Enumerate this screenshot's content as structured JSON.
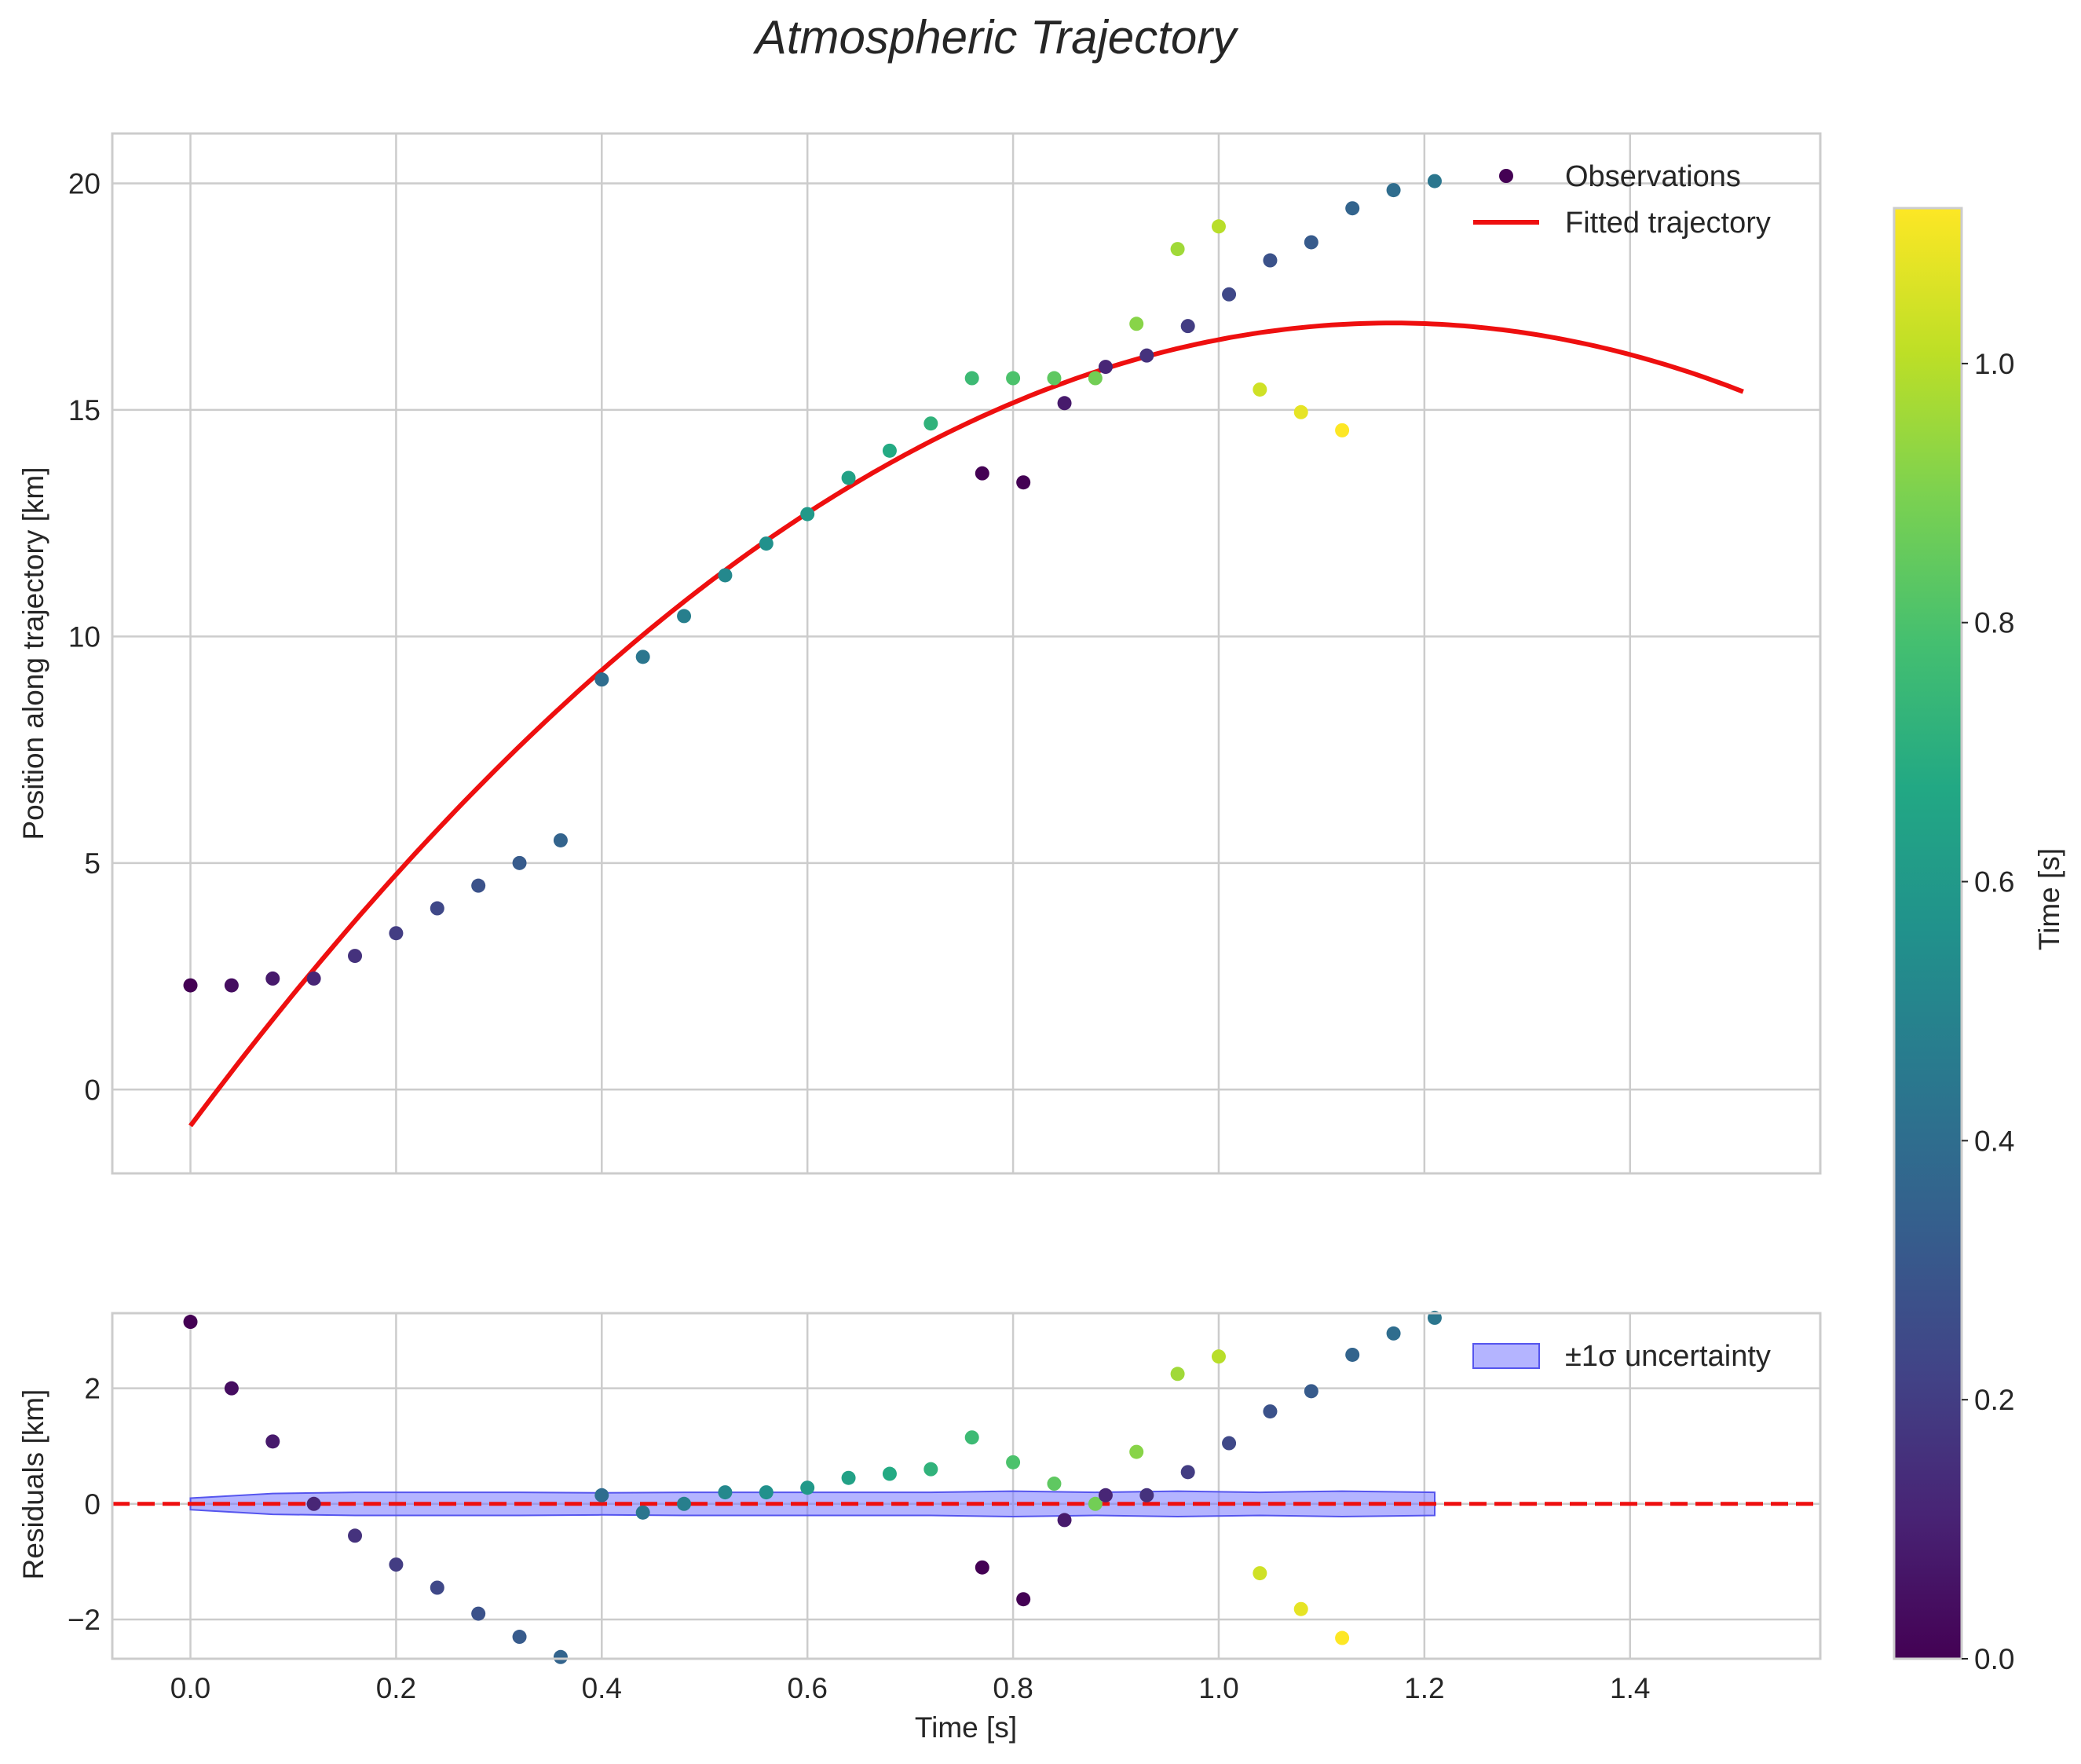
{
  "chart_data": {
    "title": "Atmospheric Trajectory",
    "main": {
      "type": "scatter",
      "ylabel": "Position along trajectory [km]",
      "xlim": [
        -0.076,
        1.585
      ],
      "ylim": [
        -1.85,
        21.1
      ],
      "yticks": [
        0,
        5,
        10,
        15,
        20
      ],
      "xticks": [
        0.0,
        0.2,
        0.4,
        0.6,
        0.8,
        1.0,
        1.2,
        1.4
      ],
      "grid": true,
      "legend": {
        "position": "top-right",
        "entries": [
          "Observations",
          "Fitted trajectory"
        ]
      },
      "observations": {
        "name": "Observations",
        "t": [
          0.0,
          0.04,
          0.08,
          0.12,
          0.16,
          0.2,
          0.24,
          0.28,
          0.32,
          0.36,
          0.4,
          0.44,
          0.48,
          0.52,
          0.56,
          0.6,
          0.64,
          0.68,
          0.72,
          0.76,
          0.77,
          0.8,
          0.81,
          0.84,
          0.85,
          0.88,
          0.89,
          0.92,
          0.93,
          0.96,
          0.97,
          1.0,
          1.01,
          1.04,
          1.05,
          1.08,
          1.09,
          1.12,
          1.13,
          1.17,
          1.21
        ],
        "position": [
          2.3,
          2.3,
          2.45,
          2.45,
          2.95,
          3.45,
          4.0,
          4.5,
          5.0,
          5.5,
          9.05,
          9.55,
          10.45,
          11.35,
          12.05,
          12.7,
          13.5,
          14.1,
          14.7,
          15.7,
          13.6,
          15.7,
          13.4,
          15.7,
          15.15,
          15.7,
          15.95,
          16.9,
          16.2,
          18.55,
          16.85,
          19.05,
          17.55,
          15.45,
          18.3,
          14.95,
          18.7,
          14.55,
          19.45,
          19.85,
          20.05
        ],
        "color_value": [
          0.0,
          0.04,
          0.08,
          0.12,
          0.16,
          0.2,
          0.24,
          0.28,
          0.32,
          0.36,
          0.4,
          0.44,
          0.48,
          0.52,
          0.56,
          0.6,
          0.64,
          0.68,
          0.72,
          0.76,
          0.0,
          0.8,
          0.0,
          0.84,
          0.08,
          0.88,
          0.12,
          0.92,
          0.16,
          0.96,
          0.2,
          1.0,
          0.24,
          1.04,
          0.28,
          1.08,
          0.32,
          1.12,
          0.36,
          0.4,
          0.44
        ]
      },
      "fit": {
        "name": "Fitted trajectory",
        "color": "#ee0f0f",
        "model": "quadratic",
        "coefficients": {
          "a": -0.8,
          "b": 30.33,
          "c": -12.98
        },
        "t_range": [
          0.0,
          1.51
        ]
      }
    },
    "residuals": {
      "type": "scatter",
      "xlabel": "Time [s]",
      "ylabel": "Residuals [km]",
      "xlim": [
        -0.076,
        1.585
      ],
      "ylim": [
        -2.68,
        3.3
      ],
      "yticks": [
        -2,
        0,
        2
      ],
      "xticks": [
        0.0,
        0.2,
        0.4,
        0.6,
        0.8,
        1.0,
        1.2,
        1.4
      ],
      "xticklabels": [
        "0.0",
        "0.2",
        "0.4",
        "0.6",
        "0.8",
        "1.0",
        "1.2",
        "1.4"
      ],
      "grid": true,
      "zero_line": {
        "value": 0,
        "color": "#ee0f0f",
        "style": "dashed"
      },
      "legend": {
        "position": "top-right",
        "entries": [
          "±1σ uncertainty"
        ]
      },
      "uncertainty_band": {
        "name": "±1σ uncertainty",
        "color": "#7777ff",
        "t": [
          0.0,
          0.08,
          0.16,
          0.24,
          0.32,
          0.4,
          0.48,
          0.56,
          0.64,
          0.72,
          0.8,
          0.88,
          0.96,
          1.04,
          1.12,
          1.21
        ],
        "sigma": [
          0.1,
          0.18,
          0.2,
          0.2,
          0.2,
          0.19,
          0.2,
          0.2,
          0.2,
          0.2,
          0.22,
          0.2,
          0.22,
          0.2,
          0.22,
          0.2
        ]
      },
      "points": {
        "t": [
          0.0,
          0.04,
          0.08,
          0.12,
          0.16,
          0.2,
          0.24,
          0.28,
          0.32,
          0.36,
          0.4,
          0.44,
          0.48,
          0.52,
          0.56,
          0.6,
          0.64,
          0.68,
          0.72,
          0.76,
          0.77,
          0.8,
          0.81,
          0.84,
          0.85,
          0.88,
          0.89,
          0.92,
          0.93,
          0.96,
          0.97,
          1.0,
          1.01,
          1.04,
          1.05,
          1.08,
          1.09,
          1.12,
          1.13,
          1.17,
          1.21
        ],
        "residual": [
          3.15,
          2.0,
          1.08,
          0.0,
          -0.55,
          -1.05,
          -1.45,
          -1.9,
          -2.3,
          -2.65,
          0.15,
          -0.15,
          0.0,
          0.2,
          0.2,
          0.28,
          0.45,
          0.52,
          0.6,
          1.15,
          -1.1,
          0.72,
          -1.65,
          0.35,
          -0.28,
          0.0,
          0.15,
          0.9,
          0.15,
          2.25,
          0.55,
          2.55,
          1.05,
          -1.2,
          1.6,
          -1.82,
          1.95,
          -2.32,
          2.58,
          2.95,
          3.22
        ],
        "color_value": [
          0.0,
          0.04,
          0.08,
          0.12,
          0.16,
          0.2,
          0.24,
          0.28,
          0.32,
          0.36,
          0.4,
          0.44,
          0.48,
          0.52,
          0.56,
          0.6,
          0.64,
          0.68,
          0.72,
          0.76,
          0.0,
          0.8,
          0.0,
          0.84,
          0.08,
          0.88,
          0.12,
          0.92,
          0.16,
          0.96,
          0.2,
          1.0,
          0.24,
          1.04,
          0.28,
          1.08,
          0.32,
          1.12,
          0.36,
          0.4,
          0.44
        ]
      }
    },
    "colorbar": {
      "label": "Time [s]",
      "colormap": "viridis",
      "range": [
        0.0,
        1.12
      ],
      "ticks": [
        0.0,
        0.2,
        0.4,
        0.6,
        0.8,
        1.0
      ],
      "ticklabels": [
        "0.0",
        "0.2",
        "0.4",
        "0.6",
        "0.8",
        "1.0"
      ]
    }
  }
}
